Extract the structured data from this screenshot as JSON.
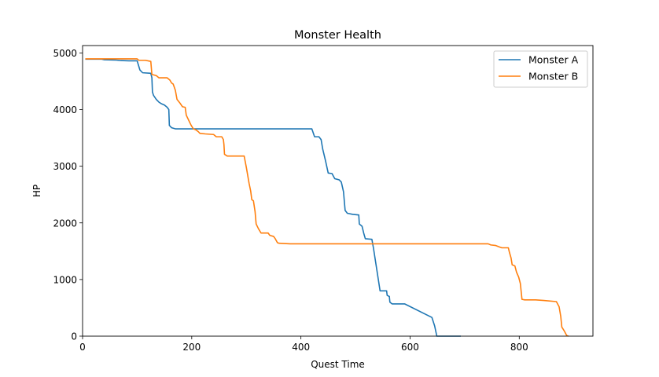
{
  "chart_data": {
    "type": "line",
    "title": "Monster Health",
    "xlabel": "Quest Time",
    "ylabel": "HP",
    "xlim": [
      0,
      935
    ],
    "ylim": [
      0,
      5130
    ],
    "xticks": [
      0,
      200,
      400,
      600,
      800
    ],
    "yticks": [
      0,
      1000,
      2000,
      3000,
      4000,
      5000
    ],
    "grid": false,
    "legend_position": "top-right",
    "colors": {
      "Monster A": "#1f77b4",
      "Monster B": "#ff7f0e"
    },
    "series": [
      {
        "name": "Monster A",
        "points": [
          [
            5,
            4890
          ],
          [
            35,
            4890
          ],
          [
            40,
            4880
          ],
          [
            60,
            4875
          ],
          [
            70,
            4865
          ],
          [
            85,
            4860
          ],
          [
            100,
            4860
          ],
          [
            105,
            4700
          ],
          [
            110,
            4650
          ],
          [
            125,
            4640
          ],
          [
            127,
            4560
          ],
          [
            128,
            4310
          ],
          [
            130,
            4250
          ],
          [
            135,
            4180
          ],
          [
            140,
            4130
          ],
          [
            145,
            4100
          ],
          [
            150,
            4080
          ],
          [
            155,
            4040
          ],
          [
            158,
            4000
          ],
          [
            159,
            3720
          ],
          [
            163,
            3680
          ],
          [
            170,
            3660
          ],
          [
            200,
            3660
          ],
          [
            300,
            3660
          ],
          [
            420,
            3660
          ],
          [
            425,
            3520
          ],
          [
            433,
            3520
          ],
          [
            437,
            3470
          ],
          [
            440,
            3300
          ],
          [
            445,
            3100
          ],
          [
            450,
            2880
          ],
          [
            457,
            2870
          ],
          [
            462,
            2780
          ],
          [
            470,
            2760
          ],
          [
            474,
            2720
          ],
          [
            478,
            2550
          ],
          [
            481,
            2220
          ],
          [
            485,
            2170
          ],
          [
            495,
            2150
          ],
          [
            506,
            2140
          ],
          [
            507,
            1980
          ],
          [
            512,
            1940
          ],
          [
            515,
            1820
          ],
          [
            518,
            1720
          ],
          [
            530,
            1710
          ],
          [
            533,
            1550
          ],
          [
            537,
            1300
          ],
          [
            541,
            1050
          ],
          [
            545,
            800
          ],
          [
            557,
            800
          ],
          [
            558,
            720
          ],
          [
            562,
            700
          ],
          [
            563,
            600
          ],
          [
            567,
            570
          ],
          [
            590,
            570
          ],
          [
            640,
            330
          ],
          [
            645,
            180
          ],
          [
            649,
            0
          ],
          [
            660,
            0
          ],
          [
            693,
            0
          ]
        ]
      },
      {
        "name": "Monster B",
        "points": [
          [
            5,
            4895
          ],
          [
            100,
            4895
          ],
          [
            103,
            4870
          ],
          [
            115,
            4870
          ],
          [
            125,
            4850
          ],
          [
            127,
            4620
          ],
          [
            135,
            4600
          ],
          [
            140,
            4560
          ],
          [
            155,
            4560
          ],
          [
            160,
            4520
          ],
          [
            163,
            4470
          ],
          [
            166,
            4450
          ],
          [
            170,
            4340
          ],
          [
            173,
            4180
          ],
          [
            178,
            4120
          ],
          [
            183,
            4050
          ],
          [
            188,
            4040
          ],
          [
            190,
            3900
          ],
          [
            194,
            3820
          ],
          [
            199,
            3720
          ],
          [
            203,
            3660
          ],
          [
            208,
            3640
          ],
          [
            212,
            3610
          ],
          [
            215,
            3580
          ],
          [
            225,
            3570
          ],
          [
            240,
            3560
          ],
          [
            245,
            3520
          ],
          [
            255,
            3520
          ],
          [
            258,
            3470
          ],
          [
            259,
            3380
          ],
          [
            260,
            3210
          ],
          [
            265,
            3180
          ],
          [
            282,
            3180
          ],
          [
            296,
            3180
          ],
          [
            300,
            2980
          ],
          [
            305,
            2700
          ],
          [
            308,
            2560
          ],
          [
            310,
            2410
          ],
          [
            313,
            2390
          ],
          [
            316,
            2200
          ],
          [
            318,
            1980
          ],
          [
            322,
            1900
          ],
          [
            327,
            1820
          ],
          [
            340,
            1820
          ],
          [
            343,
            1780
          ],
          [
            350,
            1760
          ],
          [
            353,
            1720
          ],
          [
            357,
            1650
          ],
          [
            360,
            1640
          ],
          [
            380,
            1630
          ],
          [
            500,
            1630
          ],
          [
            600,
            1630
          ],
          [
            743,
            1630
          ],
          [
            748,
            1610
          ],
          [
            757,
            1600
          ],
          [
            762,
            1580
          ],
          [
            768,
            1560
          ],
          [
            780,
            1560
          ],
          [
            782,
            1480
          ],
          [
            785,
            1380
          ],
          [
            787,
            1260
          ],
          [
            792,
            1240
          ],
          [
            795,
            1130
          ],
          [
            799,
            1040
          ],
          [
            802,
            930
          ],
          [
            805,
            650
          ],
          [
            810,
            640
          ],
          [
            830,
            640
          ],
          [
            845,
            630
          ],
          [
            868,
            610
          ],
          [
            873,
            520
          ],
          [
            876,
            350
          ],
          [
            878,
            160
          ],
          [
            882,
            100
          ],
          [
            887,
            10
          ],
          [
            890,
            0
          ]
        ]
      }
    ]
  }
}
